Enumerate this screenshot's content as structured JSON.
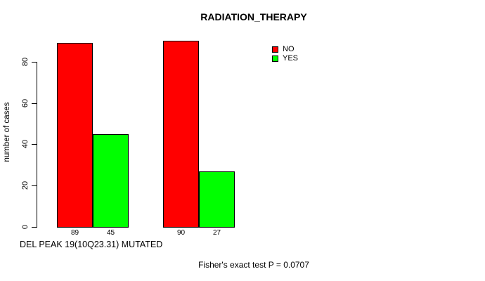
{
  "chart_data": {
    "type": "bar",
    "title": "RADIATION_THERAPY",
    "ylabel": "number of cases",
    "xlabel": "DEL PEAK 19(10Q23.31) MUTATED",
    "footer": "Fisher's exact test P = 0.0707",
    "categories": [
      "",
      ""
    ],
    "series": [
      {
        "name": "NO",
        "color": "#FF0000",
        "values": [
          89,
          90
        ]
      },
      {
        "name": "YES",
        "color": "#00FF00",
        "values": [
          45,
          27
        ]
      }
    ],
    "bar_value_labels": [
      [
        "89",
        "45"
      ],
      [
        "90",
        "27"
      ]
    ],
    "yticks": [
      0,
      20,
      40,
      60,
      80
    ],
    "ylim": [
      0,
      95
    ],
    "grid": false,
    "legend_position": "top-right",
    "legend": [
      {
        "label": "NO",
        "color": "#FF0000"
      },
      {
        "label": "YES",
        "color": "#00FF00"
      }
    ]
  }
}
